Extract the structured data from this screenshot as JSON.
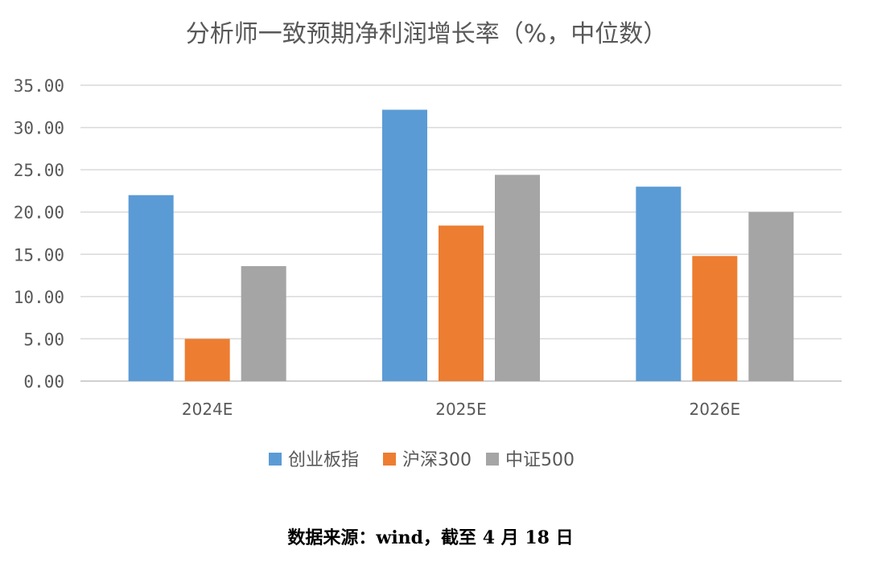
{
  "chart_data": {
    "type": "bar",
    "title": "分析师一致预期净利润增长率（%，中位数）",
    "categories": [
      "2024E",
      "2025E",
      "2026E"
    ],
    "series": [
      {
        "name": "创业板指",
        "color": "#5b9bd5",
        "values": [
          22.0,
          32.1,
          23.0
        ]
      },
      {
        "name": "沪深300",
        "color": "#ed7d31",
        "values": [
          5.0,
          18.4,
          14.8
        ]
      },
      {
        "name": "中证500",
        "color": "#a5a5a5",
        "values": [
          13.6,
          24.4,
          20.0
        ]
      }
    ],
    "yticks": [
      "0.00",
      "5.00",
      "10.00",
      "15.00",
      "20.00",
      "25.00",
      "30.00",
      "35.00"
    ],
    "ylim": [
      0,
      35
    ],
    "grid": true,
    "legend_position": "bottom"
  },
  "source_note": "数据来源：wind，截至 4 月 18 日",
  "colors": {
    "gridline": "#d9d9d9",
    "text": "#595959"
  }
}
